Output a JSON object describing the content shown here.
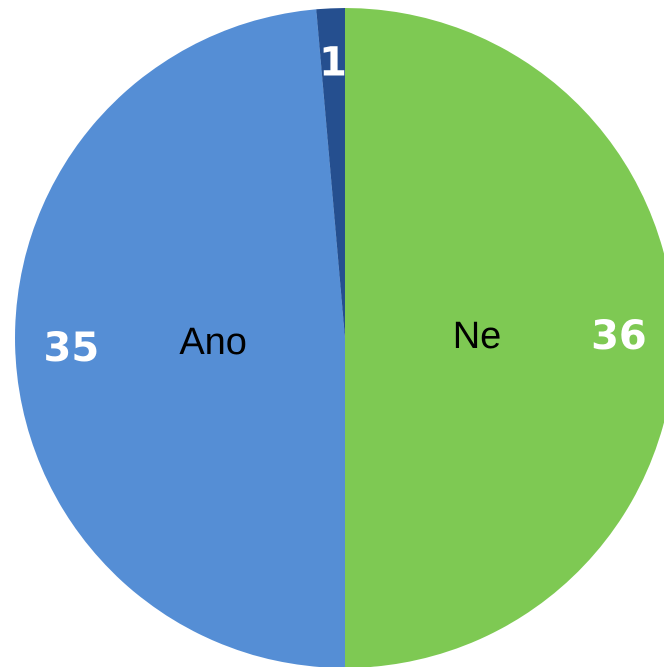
{
  "chart_data": {
    "type": "pie",
    "categories": [
      "Ne",
      "Ano",
      null
    ],
    "values": [
      36,
      35,
      1
    ],
    "colors": [
      "#7ec953",
      "#558ed5",
      "#254f8f"
    ]
  }
}
